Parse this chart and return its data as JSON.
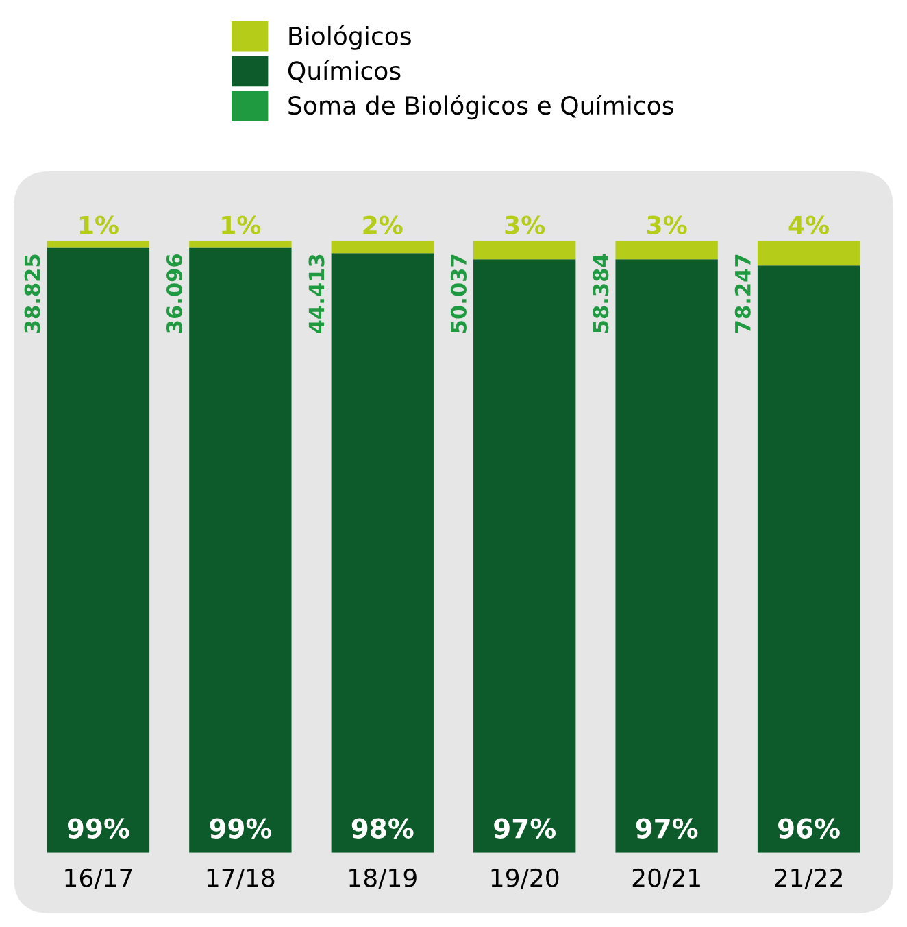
{
  "chart_data": {
    "type": "bar",
    "stacked": true,
    "categories": [
      "16/17",
      "17/18",
      "18/19",
      "19/20",
      "20/21",
      "21/22"
    ],
    "series": [
      {
        "name": "Químicos",
        "color": "#0d5a2b",
        "values": [
          99,
          99,
          98,
          97,
          97,
          96
        ],
        "value_labels": [
          "99%",
          "99%",
          "98%",
          "97%",
          "97%",
          "96%"
        ]
      },
      {
        "name": "Biológicos",
        "color": "#b5cc18",
        "values": [
          1,
          1,
          2,
          3,
          3,
          4
        ],
        "value_labels": [
          "1%",
          "1%",
          "2%",
          "3%",
          "3%",
          "4%"
        ]
      },
      {
        "name": "Soma de Biológicos e Químicos",
        "color": "#1f9a40",
        "values": [
          null,
          null,
          null,
          null,
          null,
          null
        ]
      }
    ],
    "annotations": [
      "38.825",
      "36.096",
      "44.413",
      "50.037",
      "58.384",
      "78.247"
    ],
    "ylim": [
      0,
      100
    ],
    "tick_labels": "x",
    "legend": "top",
    "grid": false
  }
}
